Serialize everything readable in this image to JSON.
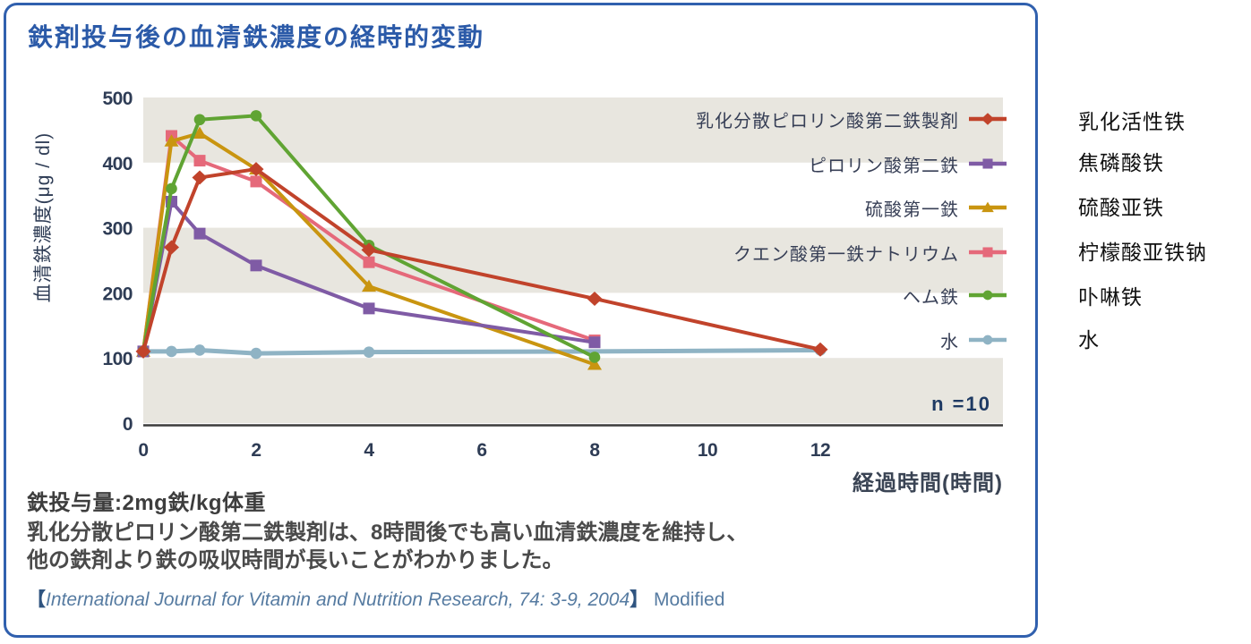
{
  "card": {
    "title": "鉄剤投与後の血清鉄濃度の経時的変動",
    "border_color": "#3060ae",
    "title_color": "#2b5aa8"
  },
  "chart_data": {
    "type": "line",
    "title": "鉄剤投与後の血清鉄濃度の経時的変動",
    "xlabel": "経過時間(時間)",
    "ylabel": "血清鉄濃度(μg / dl)",
    "xlim": [
      0,
      12
    ],
    "ylim": [
      0,
      500
    ],
    "x_ticks": [
      0,
      2,
      4,
      6,
      8,
      10,
      12
    ],
    "y_ticks": [
      0,
      100,
      200,
      300,
      400,
      500
    ],
    "grid": "horizontal alternating bands",
    "bands": [
      [
        0,
        100
      ],
      [
        200,
        300
      ],
      [
        400,
        500
      ]
    ],
    "band_fill": "#e8e6df",
    "legend_position": "inside top-right",
    "annotation": "n =10",
    "z_order": [
      5,
      3,
      2,
      1,
      4,
      0
    ],
    "series": [
      {
        "name": "乳化分散ピロリン酸第二鉄製剤",
        "color": "#c1432b",
        "marker": "diamond",
        "x": [
          0,
          0.5,
          1,
          2,
          4,
          8,
          12
        ],
        "values": [
          110,
          270,
          377,
          390,
          266,
          191,
          113
        ]
      },
      {
        "name": "ピロリン酸第二鉄",
        "color": "#7f5ba5",
        "marker": "square",
        "x": [
          0,
          0.5,
          1,
          2,
          4,
          8
        ],
        "values": [
          110,
          340,
          291,
          242,
          176,
          124
        ]
      },
      {
        "name": "硫酸第一鉄",
        "color": "#c99510",
        "marker": "triangle",
        "x": [
          0,
          0.5,
          1,
          2,
          4,
          8
        ],
        "values": [
          110,
          433,
          445,
          390,
          210,
          90
        ]
      },
      {
        "name": "クエン酸第一鉄ナトリウム",
        "color": "#e5697a",
        "marker": "square",
        "x": [
          0,
          0.5,
          1,
          2,
          4,
          8
        ],
        "values": [
          110,
          441,
          403,
          371,
          247,
          127
        ]
      },
      {
        "name": "ヘム鉄",
        "color": "#60a433",
        "marker": "circle",
        "x": [
          0,
          0.5,
          1,
          2,
          4,
          8
        ],
        "values": [
          110,
          360,
          466,
          472,
          273,
          101
        ]
      },
      {
        "name": "水",
        "color": "#8fb3c4",
        "marker": "circle",
        "width": 5,
        "marker_at": [
          0,
          1,
          2,
          3,
          4,
          6
        ],
        "x": [
          0,
          0.5,
          1,
          2,
          4,
          8,
          12
        ],
        "values": [
          110,
          110,
          112,
          107,
          109,
          110,
          112
        ]
      }
    ]
  },
  "translations": {
    "items": [
      "乳化活性铁",
      "焦磷酸铁",
      "硫酸亚铁",
      "柠檬酸亚铁钠",
      "卟啉铁",
      "水"
    ]
  },
  "notes": {
    "dose": "鉄投与量:2mg鉄/kg体重",
    "finding_line1": "乳化分散ピロリン酸第二鉄製剤は、8時間後でも高い血清鉄濃度を維持し、",
    "finding_line2": "他の鉄剤より鉄の吸収時間が長いことがわかりました。",
    "citation": {
      "open": "【",
      "journal": "International Journal for Vitamin and Nutrition Research",
      "rest": ", 74: 3-9, 2004",
      "close": "】",
      "suffix": " Modified"
    }
  }
}
